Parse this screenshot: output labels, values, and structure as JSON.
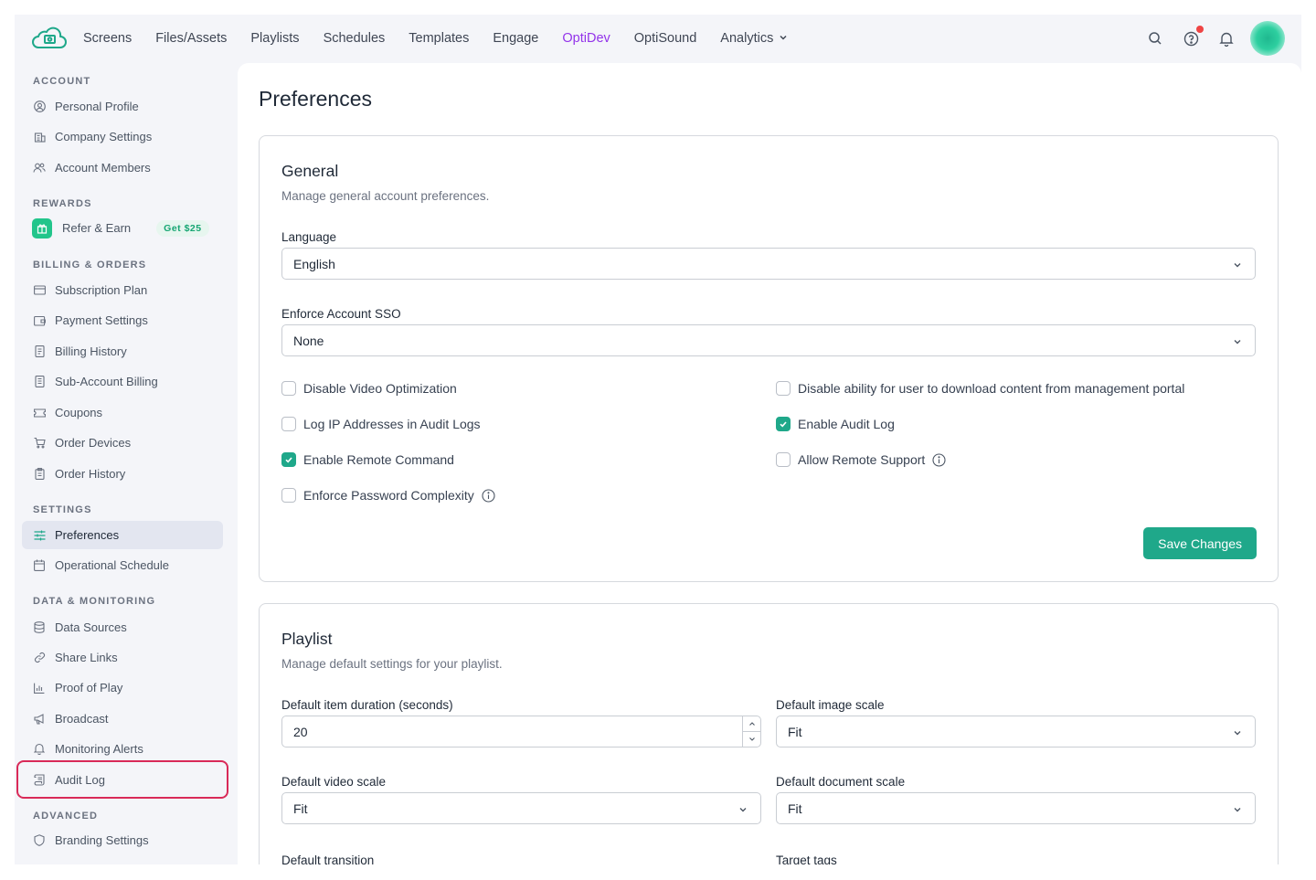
{
  "nav": {
    "items": [
      {
        "label": "Screens",
        "active": false
      },
      {
        "label": "Files/Assets",
        "active": false
      },
      {
        "label": "Playlists",
        "active": false
      },
      {
        "label": "Schedules",
        "active": false
      },
      {
        "label": "Templates",
        "active": false
      },
      {
        "label": "Engage",
        "active": false
      },
      {
        "label": "OptiDev",
        "active": true
      },
      {
        "label": "OptiSound",
        "active": false
      },
      {
        "label": "Analytics",
        "active": false,
        "dropdown": true
      }
    ],
    "icons": [
      "search-icon",
      "help-icon",
      "bell-icon"
    ],
    "accent_color": "#9333ea"
  },
  "sidebar": {
    "account_title": "ACCOUNT",
    "personal_profile": "Personal Profile",
    "company_settings": "Company Settings",
    "account_members": "Account Members",
    "rewards_title": "REWARDS",
    "refer_earn": "Refer & Earn",
    "refer_badge": "Get $25",
    "billing_title": "BILLING & ORDERS",
    "subscription_plan": "Subscription Plan",
    "payment_settings": "Payment Settings",
    "billing_history": "Billing History",
    "sub_account_billing": "Sub-Account Billing",
    "coupons": "Coupons",
    "order_devices": "Order Devices",
    "order_history": "Order History",
    "settings_title": "SETTINGS",
    "preferences": "Preferences",
    "operational_schedule": "Operational Schedule",
    "data_title": "DATA & MONITORING",
    "data_sources": "Data Sources",
    "share_links": "Share Links",
    "proof_of_play": "Proof of Play",
    "broadcast": "Broadcast",
    "monitoring_alerts": "Monitoring Alerts",
    "audit_log": "Audit Log",
    "advanced_title": "ADVANCED",
    "branding_settings": "Branding Settings"
  },
  "page": {
    "title": "Preferences"
  },
  "general": {
    "title": "General",
    "description": "Manage general account preferences.",
    "language_label": "Language",
    "language_value": "English",
    "sso_label": "Enforce Account SSO",
    "sso_value": "None",
    "checkboxes": {
      "disable_video_opt": {
        "label": "Disable Video Optimization",
        "checked": false
      },
      "log_ip": {
        "label": "Log IP Addresses in Audit Logs",
        "checked": false
      },
      "remote_command": {
        "label": "Enable Remote Command",
        "checked": true
      },
      "password_complexity": {
        "label": "Enforce Password Complexity",
        "checked": false
      },
      "disable_download": {
        "label": "Disable ability for user to download content from management portal",
        "checked": false
      },
      "audit_log": {
        "label": "Enable Audit Log",
        "checked": true
      },
      "remote_support": {
        "label": "Allow Remote Support",
        "checked": false
      }
    },
    "save_label": "Save Changes",
    "button_color": "#1fa88a"
  },
  "playlist": {
    "title": "Playlist",
    "description": "Manage default settings for your playlist.",
    "duration_label": "Default item duration (seconds)",
    "duration_value": "20",
    "image_scale_label": "Default image scale",
    "image_scale_value": "Fit",
    "video_scale_label": "Default video scale",
    "video_scale_value": "Fit",
    "document_scale_label": "Default document scale",
    "document_scale_value": "Fit",
    "transition_label": "Default transition",
    "target_tags_label": "Target tags"
  }
}
